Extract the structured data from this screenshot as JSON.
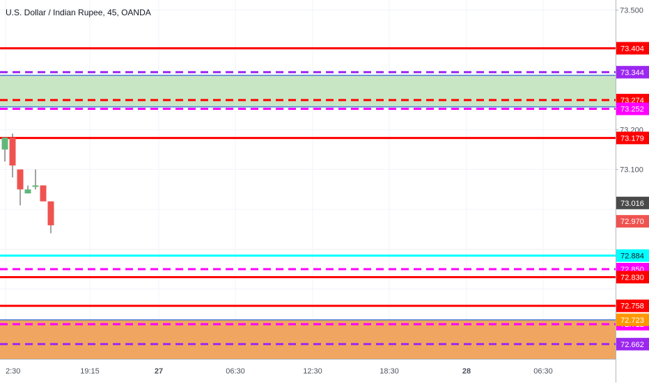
{
  "chart_data": {
    "type": "candlestick",
    "title": "U.S. Dollar / Indian Rupee, 45, OANDA",
    "ylim": [
      72.625,
      73.525
    ],
    "y_ticks": [
      "73.500",
      "73.200",
      "73.100",
      "72.880"
    ],
    "x_ticks": [
      "2:30",
      "19:15",
      "27",
      "06:30",
      "12:30",
      "18:30",
      "28",
      "06:30"
    ],
    "candles": [
      {
        "open": 73.15,
        "high": 73.18,
        "low": 73.12,
        "close": 73.18
      },
      {
        "open": 73.18,
        "high": 73.19,
        "low": 73.08,
        "close": 73.11
      },
      {
        "open": 73.1,
        "high": 73.1,
        "low": 73.01,
        "close": 73.05
      },
      {
        "open": 73.04,
        "high": 73.06,
        "low": 73.04,
        "close": 73.05
      },
      {
        "open": 73.06,
        "high": 73.1,
        "low": 73.05,
        "close": 73.06
      },
      {
        "open": 73.06,
        "high": 73.06,
        "low": 73.02,
        "close": 73.02
      },
      {
        "open": 73.02,
        "high": 73.02,
        "low": 72.94,
        "close": 72.96
      }
    ],
    "zones": [
      {
        "top": 73.336,
        "bottom": 73.257,
        "color": "#c8e6c4",
        "border": "#4a7cd4"
      },
      {
        "top": 72.723,
        "bottom": 72.625,
        "color": "#f0a660",
        "border": "#4a7cd4"
      }
    ],
    "levels": [
      {
        "value": 73.404,
        "label": "73.404",
        "color": "#ff0000",
        "style": "solid"
      },
      {
        "value": 73.344,
        "label": "73.344",
        "color": "#9c27f0",
        "style": "dashed"
      },
      {
        "value": 73.274,
        "label": "73.274",
        "color": "#ff0000",
        "style": "dashed"
      },
      {
        "value": 73.252,
        "label": "73.252",
        "color": "#ff00ff",
        "style": "dashed"
      },
      {
        "value": 73.179,
        "label": "73.179",
        "color": "#ff0000",
        "style": "solid"
      },
      {
        "value": 72.884,
        "label": "72.884",
        "color": "#00ffff",
        "style": "solid"
      },
      {
        "value": 72.85,
        "label": "72.850",
        "color": "#ff00ff",
        "style": "dashed"
      },
      {
        "value": 72.83,
        "label": "72.830",
        "color": "#ff0000",
        "style": "solid"
      },
      {
        "value": 72.758,
        "label": "72.758",
        "color": "#ff0000",
        "style": "solid"
      },
      {
        "value": 72.712,
        "label": "72.712",
        "color": "#ff00ff",
        "style": "dashed"
      },
      {
        "value": 72.662,
        "label": "72.662",
        "color": "#9c27f0",
        "style": "dashed"
      }
    ],
    "price_labels": [
      {
        "value": 73.016,
        "label": "73.016",
        "color": "#4a4a4a"
      },
      {
        "value": 72.97,
        "label": "72.970",
        "color": "#ef5350"
      },
      {
        "value": 72.723,
        "label": "72.723",
        "color": "#ff9800"
      }
    ],
    "colors": {
      "up": "#26a69a",
      "up_body": "#5fb87a",
      "down": "#ef5350",
      "grid": "#f0f3fa",
      "axis_text": "#4c525e"
    },
    "grid": true
  }
}
